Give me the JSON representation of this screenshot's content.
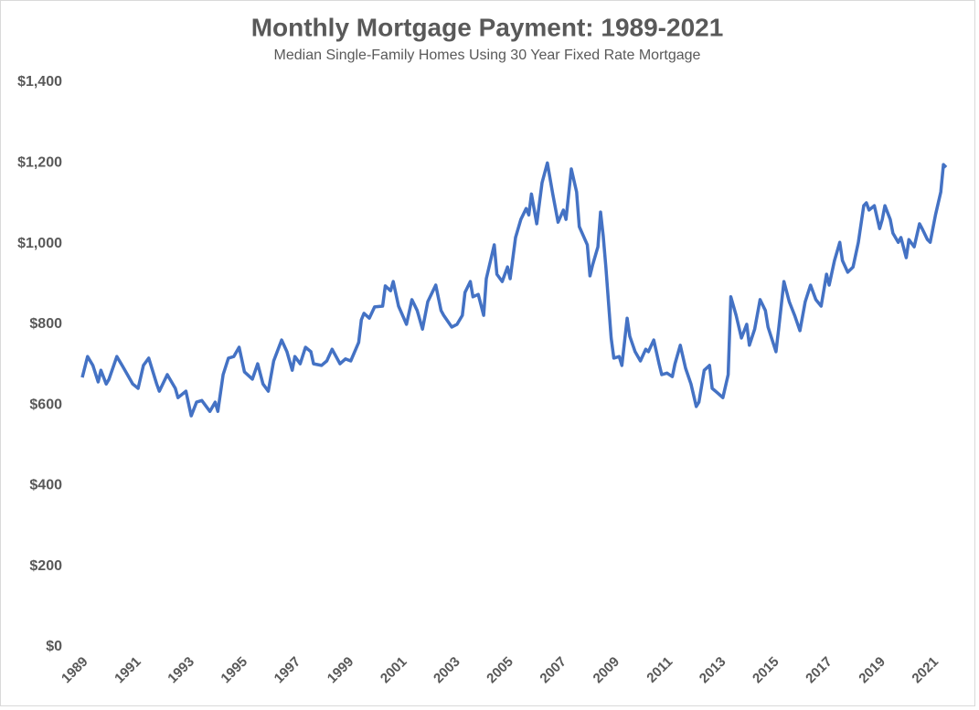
{
  "chart_data": {
    "type": "line",
    "title": "Monthly Mortgage Payment: 1989-2021",
    "subtitle": "Median Single-Family Homes Using 30 Year Fixed Rate Mortgage",
    "color": "#4472c4",
    "xlim": [
      1989,
      2021.5
    ],
    "xticks": [
      1989,
      1991,
      1993,
      1995,
      1997,
      1999,
      2001,
      2003,
      2005,
      2007,
      2009,
      2011,
      2013,
      2015,
      2017,
      2019,
      2021
    ],
    "ylim": [
      0,
      1400
    ],
    "yticks": [
      {
        "value": 0,
        "label": "$0"
      },
      {
        "value": 200,
        "label": "$200"
      },
      {
        "value": 400,
        "label": "$400"
      },
      {
        "value": 600,
        "label": "$600"
      },
      {
        "value": 800,
        "label": "$800"
      },
      {
        "value": 1000,
        "label": "$1,000"
      },
      {
        "value": 1200,
        "label": "$1,200"
      },
      {
        "value": 1400,
        "label": "$1,400"
      }
    ],
    "grid": false,
    "x": [
      1989.0,
      1989.2,
      1989.4,
      1989.6,
      1989.7,
      1989.9,
      1990.0,
      1990.3,
      1990.5,
      1990.7,
      1990.9,
      1991.1,
      1991.3,
      1991.5,
      1991.8,
      1991.9,
      1992.2,
      1992.5,
      1992.6,
      1992.9,
      1993.1,
      1993.3,
      1993.5,
      1993.8,
      1994.0,
      1994.1,
      1994.3,
      1994.5,
      1994.7,
      1994.9,
      1995.1,
      1995.4,
      1995.6,
      1995.8,
      1996.0,
      1996.2,
      1996.5,
      1996.7,
      1996.9,
      1997.0,
      1997.2,
      1997.4,
      1997.6,
      1997.7,
      1998.0,
      1998.2,
      1998.4,
      1998.7,
      1998.9,
      1999.1,
      1999.4,
      1999.5,
      1999.6,
      1999.8,
      2000.0,
      2000.3,
      2000.4,
      2000.6,
      2000.7,
      2000.9,
      2001.2,
      2001.4,
      2001.6,
      2001.8,
      2002.0,
      2002.3,
      2002.5,
      2002.6,
      2002.9,
      2003.1,
      2003.3,
      2003.4,
      2003.6,
      2003.7,
      2003.9,
      2004.1,
      2004.2,
      2004.5,
      2004.6,
      2004.8,
      2005.0,
      2005.1,
      2005.3,
      2005.5,
      2005.7,
      2005.8,
      2005.9,
      2006.1,
      2006.3,
      2006.5,
      2006.7,
      2006.9,
      2007.1,
      2007.2,
      2007.4,
      2007.6,
      2007.7,
      2008.0,
      2008.1,
      2008.2,
      2008.4,
      2008.5,
      2008.6,
      2008.7,
      2008.9,
      2009.0,
      2009.2,
      2009.3,
      2009.5,
      2009.6,
      2009.8,
      2010.0,
      2010.2,
      2010.3,
      2010.5,
      2010.7,
      2010.8,
      2011.0,
      2011.2,
      2011.3,
      2011.5,
      2011.7,
      2011.9,
      2012.1,
      2012.2,
      2012.4,
      2012.6,
      2012.7,
      2012.9,
      2013.1,
      2013.3,
      2013.4,
      2013.6,
      2013.8,
      2014.0,
      2014.1,
      2014.3,
      2014.5,
      2014.7,
      2014.8,
      2015.1,
      2015.2,
      2015.4,
      2015.6,
      2015.8,
      2016.0,
      2016.2,
      2016.4,
      2016.6,
      2016.8,
      2017.0,
      2017.1,
      2017.3,
      2017.5,
      2017.6,
      2017.8,
      2018.0,
      2018.2,
      2018.4,
      2018.5,
      2018.6,
      2018.8,
      2019.0,
      2019.1,
      2019.2,
      2019.4,
      2019.5,
      2019.7,
      2019.8,
      2020.0,
      2020.1,
      2020.3,
      2020.5,
      2020.6,
      2020.8,
      2020.9,
      2021.1,
      2021.3,
      2021.4,
      2021.5
    ],
    "values": [
      668,
      720,
      698,
      657,
      686,
      652,
      663,
      720,
      698,
      675,
      652,
      641,
      698,
      716,
      652,
      634,
      675,
      641,
      618,
      634,
      573,
      607,
      611,
      584,
      607,
      584,
      675,
      716,
      720,
      743,
      682,
      664,
      702,
      652,
      634,
      709,
      761,
      732,
      686,
      720,
      702,
      743,
      732,
      702,
      698,
      709,
      738,
      702,
      714,
      709,
      755,
      811,
      827,
      815,
      843,
      845,
      895,
      883,
      906,
      845,
      800,
      861,
      834,
      788,
      856,
      897,
      834,
      822,
      793,
      800,
      822,
      879,
      906,
      868,
      874,
      822,
      913,
      997,
      924,
      906,
      942,
      913,
      1015,
      1060,
      1087,
      1071,
      1123,
      1049,
      1151,
      1200,
      1123,
      1053,
      1083,
      1060,
      1185,
      1128,
      1042,
      997,
      920,
      947,
      992,
      1078,
      1019,
      942,
      766,
      716,
      720,
      698,
      815,
      770,
      732,
      709,
      738,
      732,
      761,
      702,
      675,
      679,
      670,
      702,
      748,
      691,
      652,
      596,
      607,
      686,
      698,
      641,
      630,
      618,
      675,
      868,
      822,
      766,
      800,
      748,
      788,
      861,
      834,
      793,
      732,
      788,
      906,
      856,
      822,
      784,
      856,
      897,
      861,
      845,
      924,
      897,
      958,
      1003,
      958,
      929,
      942,
      1003,
      1094,
      1101,
      1083,
      1094,
      1037,
      1060,
      1094,
      1060,
      1026,
      1003,
      1015,
      965,
      1010,
      992,
      1049,
      1037,
      1010,
      1003,
      1071,
      1128,
      1196,
      1189
    ]
  }
}
